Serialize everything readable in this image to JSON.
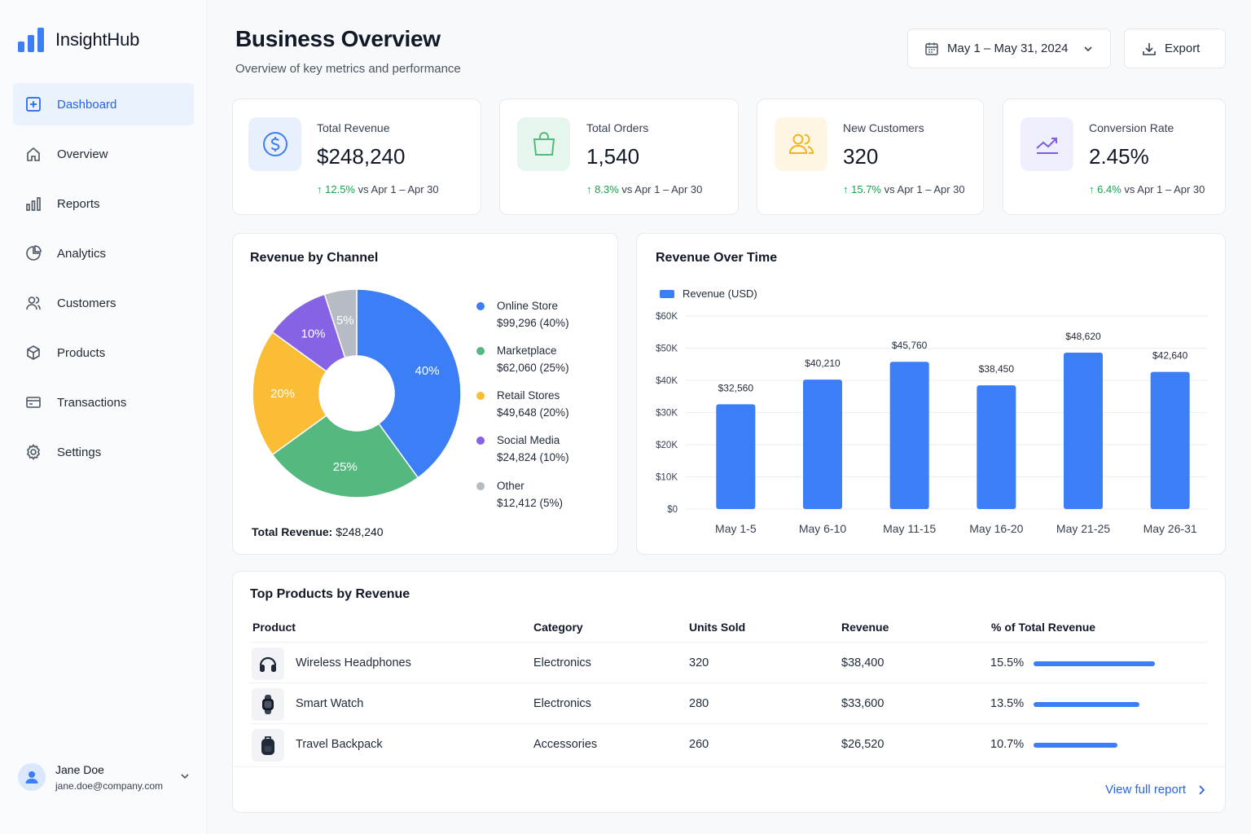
{
  "app": {
    "name": "InsightHub"
  },
  "sidebar": {
    "items": [
      {
        "label": "Dashboard",
        "icon": "dashboard-icon"
      },
      {
        "label": "Overview",
        "icon": "home-icon"
      },
      {
        "label": "Reports",
        "icon": "bar-chart-icon"
      },
      {
        "label": "Analytics",
        "icon": "pie-chart-icon"
      },
      {
        "label": "Customers",
        "icon": "users-icon"
      },
      {
        "label": "Products",
        "icon": "box-icon"
      },
      {
        "label": "Transactions",
        "icon": "card-icon"
      },
      {
        "label": "Settings",
        "icon": "gear-icon"
      }
    ],
    "active": "Dashboard"
  },
  "user": {
    "name": "Jane Doe",
    "email": "jane.doe@company.com"
  },
  "header": {
    "title": "Business Overview",
    "subtitle": "Overview of key metrics and performance",
    "date_range": "May 1 – May 31, 2024",
    "export_label": "Export"
  },
  "kpis": [
    {
      "label": "Total Revenue",
      "value": "$248,240",
      "delta": "12.5%",
      "compare": "vs Apr 1 – Apr 30",
      "icon": "dollar-icon",
      "color": "#e8effd"
    },
    {
      "label": "Total Orders",
      "value": "1,540",
      "delta": "8.3%",
      "compare": "vs Apr 1 – Apr 30",
      "icon": "bag-icon",
      "color": "#e6f6ec"
    },
    {
      "label": "New Customers",
      "value": "320",
      "delta": "15.7%",
      "compare": "vs Apr 1 – Apr 30",
      "icon": "users-icon",
      "color": "#fef6e2"
    },
    {
      "label": "Conversion Rate",
      "value": "2.45%",
      "delta": "6.4%",
      "compare": "vs Apr 1 – Apr 30",
      "icon": "trend-icon",
      "color": "#efeefd"
    }
  ],
  "channel": {
    "title": "Revenue by Channel",
    "total_label": "Total Revenue:",
    "total_value": "$248,240",
    "legend": [
      {
        "name": "Online Store",
        "detail": "$99,296 (40%)"
      },
      {
        "name": "Marketplace",
        "detail": "$62,060 (25%)"
      },
      {
        "name": "Retail Stores",
        "detail": "$49,648 (20%)"
      },
      {
        "name": "Social Media",
        "detail": "$24,824 (10%)"
      },
      {
        "name": "Other",
        "detail": "$12,412 (5%)"
      }
    ]
  },
  "revenue_time": {
    "title": "Revenue Over Time",
    "legend": "Revenue (USD)"
  },
  "chart_data": [
    {
      "type": "pie",
      "title": "Revenue by Channel",
      "categories": [
        "Online Store",
        "Marketplace",
        "Retail Stores",
        "Social Media",
        "Other"
      ],
      "values": [
        40,
        25,
        20,
        10,
        5
      ],
      "labels": [
        "40%",
        "25%",
        "20%",
        "10%",
        "5%"
      ],
      "colors": [
        "#3b7ef6",
        "#54b87f",
        "#fbbd36",
        "#8662e4",
        "#b6bbc4"
      ],
      "donut": true
    },
    {
      "type": "bar",
      "title": "Revenue Over Time",
      "categories": [
        "May 1-5",
        "May 6-10",
        "May 11-15",
        "May 16-20",
        "May 21-25",
        "May 26-31"
      ],
      "series": [
        {
          "name": "Revenue (USD)",
          "values": [
            32560,
            40210,
            45760,
            38450,
            48620,
            42640
          ]
        }
      ],
      "value_labels": [
        "$32,560",
        "$40,210",
        "$45,760",
        "$38,450",
        "$48,620",
        "$42,640"
      ],
      "yticks": [
        "$0",
        "$10K",
        "$20K",
        "$30K",
        "$40K",
        "$50K",
        "$60K"
      ],
      "ylim": [
        0,
        60000
      ],
      "grid": true,
      "color": "#3b7ef6"
    }
  ],
  "products": {
    "title": "Top Products by Revenue",
    "columns": [
      "Product",
      "Category",
      "Units Sold",
      "Revenue",
      "% of Total Revenue"
    ],
    "rows": [
      {
        "name": "Wireless Headphones",
        "category": "Electronics",
        "units": "320",
        "revenue": "$38,400",
        "pct": "15.5%",
        "share": 15.5,
        "icon": "headphones-icon"
      },
      {
        "name": "Smart Watch",
        "category": "Electronics",
        "units": "280",
        "revenue": "$33,600",
        "pct": "13.5%",
        "share": 13.5,
        "icon": "watch-icon"
      },
      {
        "name": "Travel Backpack",
        "category": "Accessories",
        "units": "260",
        "revenue": "$26,520",
        "pct": "10.7%",
        "share": 10.7,
        "icon": "backpack-icon"
      }
    ],
    "view_link": "View full report"
  }
}
